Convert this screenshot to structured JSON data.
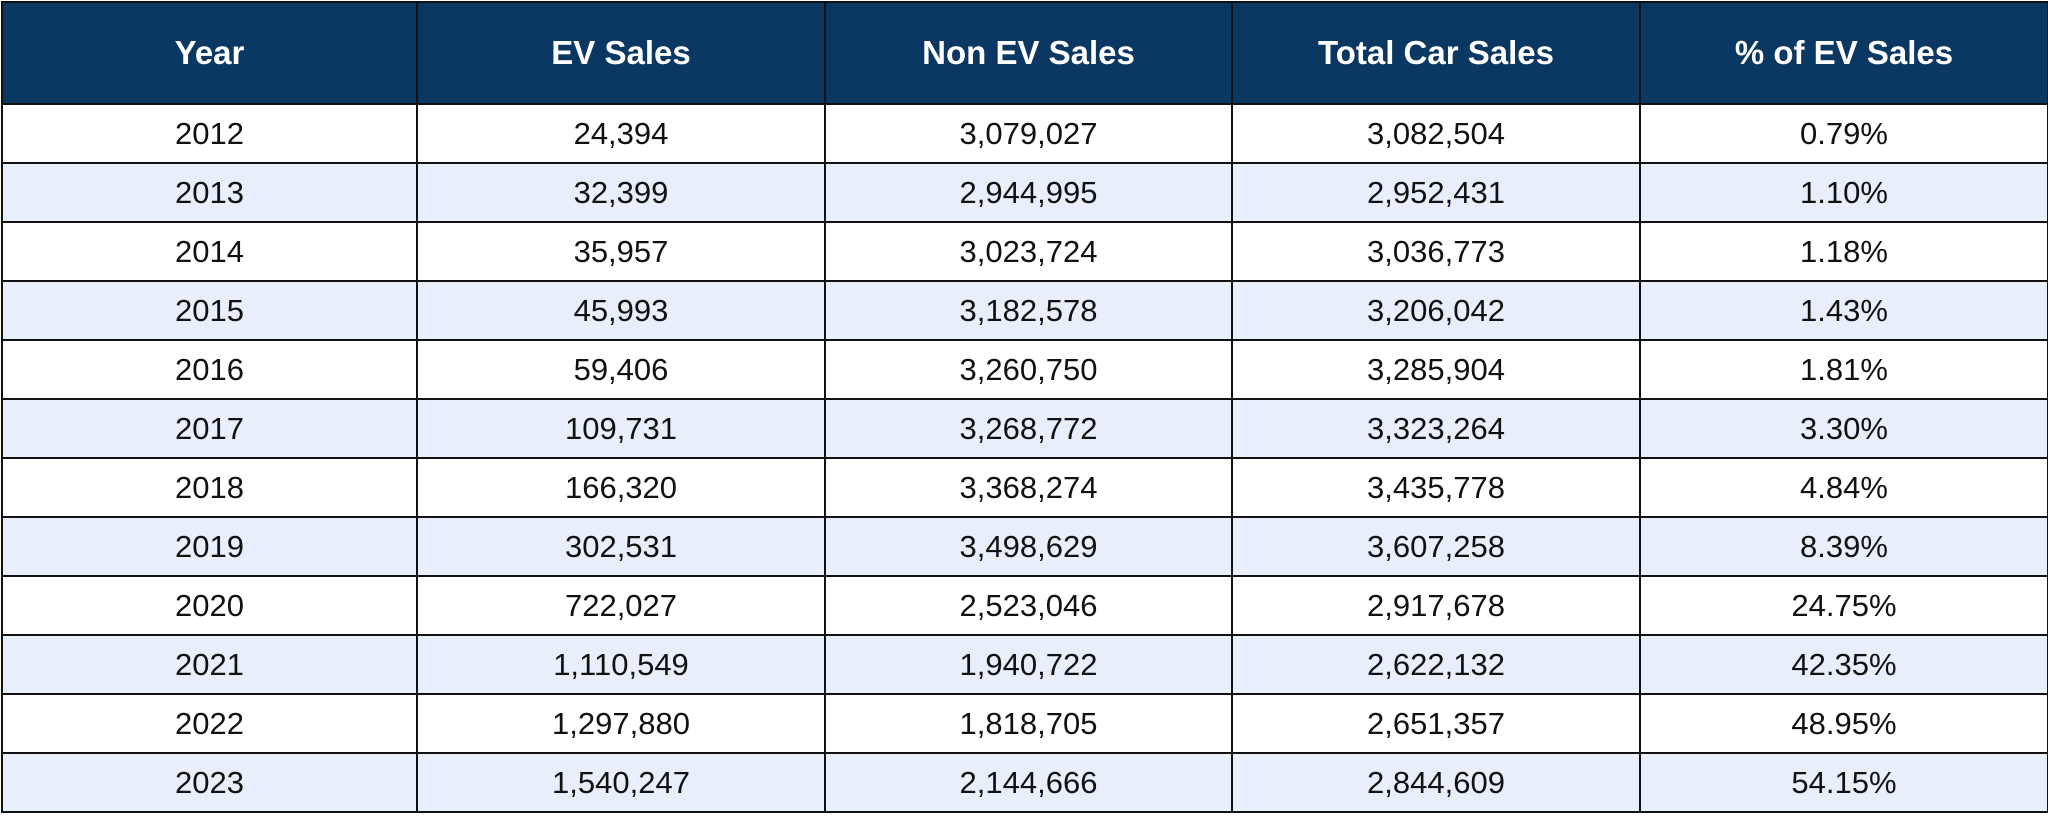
{
  "table": {
    "columns": [
      "Year",
      "EV Sales",
      "Non EV Sales",
      "Total Car Sales",
      "% of EV Sales"
    ],
    "rows": [
      [
        "2012",
        "24,394",
        "3,079,027",
        "3,082,504",
        "0.79%"
      ],
      [
        "2013",
        "32,399",
        "2,944,995",
        "2,952,431",
        "1.10%"
      ],
      [
        "2014",
        "35,957",
        "3,023,724",
        "3,036,773",
        "1.18%"
      ],
      [
        "2015",
        "45,993",
        "3,182,578",
        "3,206,042",
        "1.43%"
      ],
      [
        "2016",
        "59,406",
        "3,260,750",
        "3,285,904",
        "1.81%"
      ],
      [
        "2017",
        "109,731",
        "3,268,772",
        "3,323,264",
        "3.30%"
      ],
      [
        "2018",
        "166,320",
        "3,368,274",
        "3,435,778",
        "4.84%"
      ],
      [
        "2019",
        "302,531",
        "3,498,629",
        "3,607,258",
        "8.39%"
      ],
      [
        "2020",
        "722,027",
        "2,523,046",
        "2,917,678",
        "24.75%"
      ],
      [
        "2021",
        "1,110,549",
        "1,940,722",
        "2,622,132",
        "42.35%"
      ],
      [
        "2022",
        "1,297,880",
        "1,818,705",
        "2,651,357",
        "48.95%"
      ],
      [
        "2023",
        "1,540,247",
        "2,144,666",
        "2,844,609",
        "54.15%"
      ]
    ]
  }
}
